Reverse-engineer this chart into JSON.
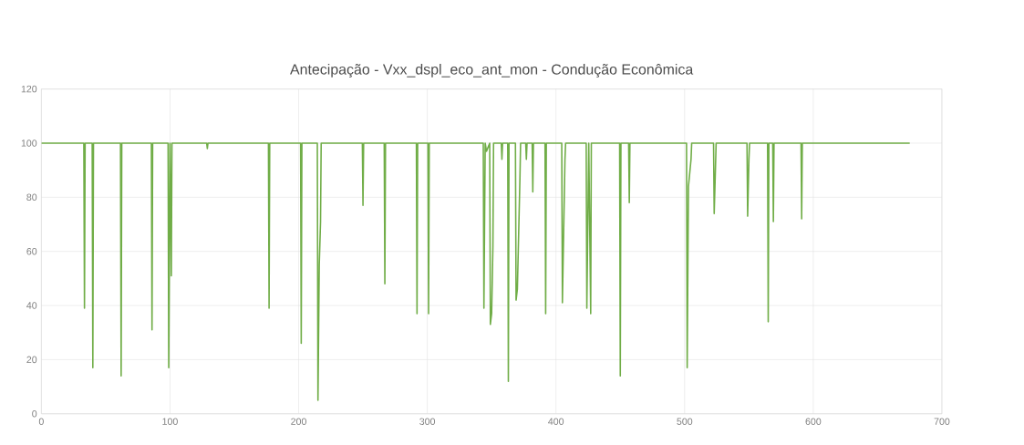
{
  "chart_data": {
    "type": "line",
    "title": "Antecipação - Vxx_dspl_eco_ant_mon  - Condução Econômica",
    "x": [
      0,
      33,
      33.5,
      34,
      39.5,
      40,
      40.5,
      61.5,
      62,
      62.5,
      85.5,
      86,
      86.5,
      98.5,
      99,
      100,
      101,
      101.5,
      128.5,
      129,
      129.5,
      176.5,
      177,
      177.5,
      201.5,
      202,
      202.5,
      214.5,
      215,
      216,
      217,
      217.5,
      249.5,
      250,
      250.5,
      266.5,
      267,
      267.5,
      291.5,
      292,
      292.5,
      300.5,
      301,
      301.5,
      343.5,
      344,
      345,
      346,
      348.5,
      349,
      350,
      351,
      351.5,
      357.5,
      358,
      358.5,
      362.5,
      363,
      363.5,
      368.5,
      369,
      370,
      372,
      372.5,
      376.5,
      377,
      377.5,
      381.5,
      382,
      382.5,
      391.5,
      392,
      392.5,
      404.5,
      405,
      407,
      407.5,
      423.5,
      424,
      425.5,
      427,
      427.5,
      449.5,
      450,
      450.5,
      456.5,
      457,
      457.5,
      501.5,
      502,
      503,
      505,
      505.5,
      522.5,
      523,
      524,
      524.5,
      548.5,
      549,
      550,
      550.5,
      564.5,
      565,
      565.5,
      568.5,
      569,
      569.5,
      590.5,
      591,
      591.5,
      675
    ],
    "values": [
      100,
      100,
      39,
      100,
      100,
      17,
      100,
      100,
      14,
      100,
      100,
      31,
      100,
      100,
      17,
      100,
      51,
      100,
      100,
      98,
      100,
      100,
      39,
      100,
      100,
      26,
      100,
      100,
      5,
      55,
      71,
      100,
      100,
      77,
      100,
      100,
      48,
      100,
      100,
      37,
      100,
      100,
      37,
      100,
      100,
      39,
      100,
      97,
      100,
      33,
      37,
      62,
      100,
      100,
      94,
      100,
      100,
      12,
      100,
      100,
      42,
      46,
      87,
      100,
      100,
      94,
      100,
      100,
      82,
      100,
      100,
      37,
      100,
      100,
      41,
      94,
      100,
      100,
      39,
      100,
      37,
      100,
      100,
      14,
      100,
      100,
      78,
      100,
      100,
      17,
      84,
      94,
      100,
      100,
      74,
      91,
      100,
      100,
      73,
      94,
      100,
      100,
      34,
      100,
      100,
      71,
      100,
      100,
      72,
      100,
      100
    ],
    "color": "#70ad47",
    "xlim": [
      0,
      700
    ],
    "xticks": [
      0,
      100,
      200,
      300,
      400,
      500,
      600,
      700
    ],
    "ylim": [
      0,
      120
    ],
    "yticks": [
      0,
      20,
      40,
      60,
      80,
      100,
      120
    ],
    "grid": true,
    "marker": "none",
    "line_style": "solid"
  }
}
